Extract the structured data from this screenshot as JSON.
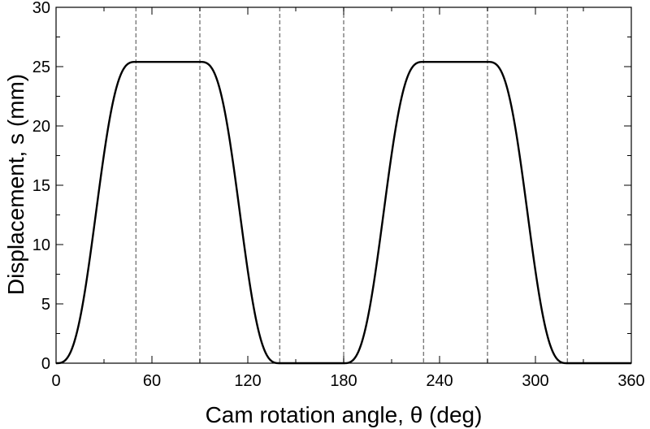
{
  "chart_data": {
    "type": "line",
    "title": "",
    "xlabel": "Cam rotation angle, θ (deg)",
    "ylabel": "Displacement, s (mm)",
    "xlim": [
      0,
      360
    ],
    "ylim": [
      0,
      30
    ],
    "xticks": [
      0,
      60,
      120,
      180,
      240,
      300,
      360
    ],
    "yticks": [
      0,
      5,
      10,
      15,
      20,
      25,
      30
    ],
    "x_tick_labels": [
      "0",
      "60",
      "120",
      "180",
      "240",
      "300",
      "360"
    ],
    "y_tick_labels": [
      "0",
      "5",
      "10",
      "15",
      "20",
      "25",
      "30"
    ],
    "grid": false,
    "legend": "none",
    "vertical_reference_lines_deg": [
      50,
      90,
      140,
      180,
      230,
      270,
      320
    ],
    "series": [
      {
        "color": "#000000",
        "segments": [
          {
            "kind": "rise",
            "x_start": 0,
            "x_end": 50,
            "y_start": 0,
            "y_end": 25.4
          },
          {
            "kind": "dwell",
            "x_start": 50,
            "x_end": 90,
            "y_start": 25.4,
            "y_end": 25.4
          },
          {
            "kind": "return",
            "x_start": 90,
            "x_end": 140,
            "y_start": 25.4,
            "y_end": 0
          },
          {
            "kind": "dwell",
            "x_start": 140,
            "x_end": 180,
            "y_start": 0,
            "y_end": 0
          },
          {
            "kind": "rise",
            "x_start": 180,
            "x_end": 230,
            "y_start": 0,
            "y_end": 25.4
          },
          {
            "kind": "dwell",
            "x_start": 230,
            "x_end": 270,
            "y_start": 25.4,
            "y_end": 25.4
          },
          {
            "kind": "return",
            "x_start": 270,
            "x_end": 320,
            "y_start": 25.4,
            "y_end": 0
          },
          {
            "kind": "dwell",
            "x_start": 320,
            "x_end": 360,
            "y_start": 0,
            "y_end": 0
          }
        ]
      }
    ]
  }
}
